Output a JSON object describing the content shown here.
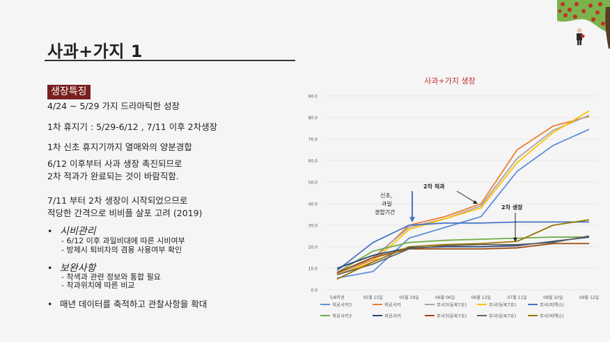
{
  "slide": {
    "title": "사과+가지 1",
    "badge": "생장특징",
    "lines": [
      "4/24 ~ 5/29  가지 드라마틱한 성장",
      "1차 휴지기 : 5/29-6/12 , 7/11 이후 2차생장",
      "1차 신초 휴지기까지 열매와의 양분경합",
      "6/12  이후부터 사과 생장 촉진되므로",
      "2차 적과가 완료되는 것이 바람직함.",
      "7/11 부터 2차 생장이 시작되었으므로",
      "적당한 간격으로 비비플 살포 고려 (2019)"
    ],
    "bullets": [
      {
        "dot": "•",
        "label": "시비관리",
        "subs": [
          "- 6/12 이후 과일비대에 따른 시비여부",
          "- 방제시 퇴비차의 겸용 사용여부 확인"
        ]
      },
      {
        "dot": "•",
        "label": "보완사항",
        "subs": [
          "- 착색과 관련 정보와 통합 필요",
          "- 착과위치에 따른 비교"
        ]
      },
      {
        "dot": "•",
        "label": "매년 데이터를 축적하고 관찰사항을 확대",
        "subs": []
      }
    ]
  },
  "chart_data": {
    "type": "line",
    "title": "사과+가지 생장",
    "categories": [
      "5/8직경",
      "05월 15일",
      "05월 29일",
      "06월 06일",
      "06월 12일",
      "07월 11일",
      "08월 10일",
      "09월 12일"
    ],
    "ylim": [
      0,
      90
    ],
    "yticks": [
      "0.0",
      "10.0",
      "20.0",
      "30.0",
      "40.0",
      "50.0",
      "60.0",
      "70.0",
      "80.0",
      "90.0"
    ],
    "annotations": {
      "a1": "신초,",
      "a2": "과일",
      "a3": "경합기간",
      "b": "2차 적과",
      "c": "2차 생장"
    },
    "series": [
      {
        "name": "히로사키3",
        "color": "#5b8fd6",
        "values": [
          5.5,
          8.5,
          24,
          29,
          34,
          55,
          67,
          74.5
        ]
      },
      {
        "name": "히로사키",
        "color": "#ed7d31",
        "values": [
          7.5,
          14,
          30,
          34,
          40,
          65,
          76,
          80.5
        ]
      },
      {
        "name": "부사3(동북7호)",
        "color": "#a5a5a5",
        "values": [
          7,
          15,
          29,
          33,
          39,
          61,
          74,
          81
        ]
      },
      {
        "name": "부사(동북7호)",
        "color": "#ffc000",
        "values": [
          7,
          13,
          28,
          33,
          38,
          59,
          73,
          83
        ]
      },
      {
        "name": "부사(피멕스)",
        "color": "#4472c4",
        "values": [
          9,
          22,
          30,
          31,
          31,
          31.5,
          31.5,
          31.5
        ]
      },
      {
        "name": "히로사키3",
        "color": "#70ad47",
        "values": [
          8,
          18,
          22,
          23,
          23.5,
          24,
          24.5,
          24.5
        ]
      },
      {
        "name": "히로사키",
        "color": "#264478",
        "values": [
          10,
          16,
          19.5,
          20,
          20,
          20.5,
          22.5,
          24.5
        ]
      },
      {
        "name": "부사3(동북7호)",
        "color": "#9e480e",
        "values": [
          8,
          15,
          19,
          19,
          19,
          19.5,
          21.5,
          21.5
        ]
      },
      {
        "name": "부사(동북7호)",
        "color": "#636363",
        "values": [
          7,
          12,
          19,
          20.5,
          21,
          21,
          22,
          25
        ]
      },
      {
        "name": "부사(피멕스)",
        "color": "#997300",
        "values": [
          5,
          13,
          20,
          21,
          21.5,
          22.5,
          30,
          32.5
        ]
      }
    ]
  }
}
